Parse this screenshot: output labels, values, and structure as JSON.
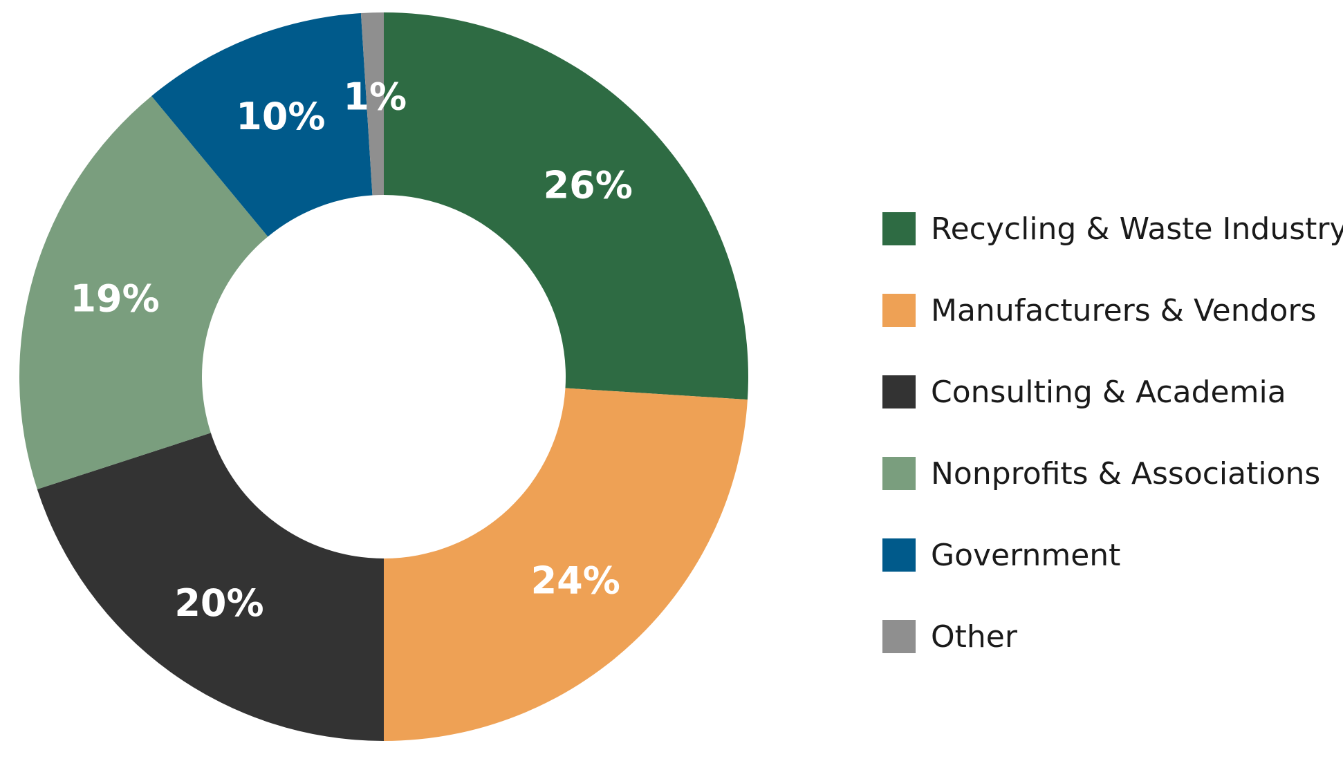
{
  "chart_data": {
    "type": "pie",
    "title": "",
    "legend_position": "right",
    "donut": true,
    "slices": [
      {
        "name": "Recycling & Waste Industry",
        "value": 26,
        "label": "26%",
        "color": "#2e6b43"
      },
      {
        "name": "Manufacturers & Vendors",
        "value": 24,
        "label": "24%",
        "color": "#eea155"
      },
      {
        "name": "Consulting & Academia",
        "value": 20,
        "label": "20%",
        "color": "#333333"
      },
      {
        "name": "Nonprofits & Associations",
        "value": 19,
        "label": "19%",
        "color": "#7a9e7e"
      },
      {
        "name": "Government",
        "value": 10,
        "label": "10%",
        "color": "#005a8b"
      },
      {
        "name": "Other",
        "value": 1,
        "label": "1%",
        "color": "#8f8f8f"
      }
    ]
  }
}
